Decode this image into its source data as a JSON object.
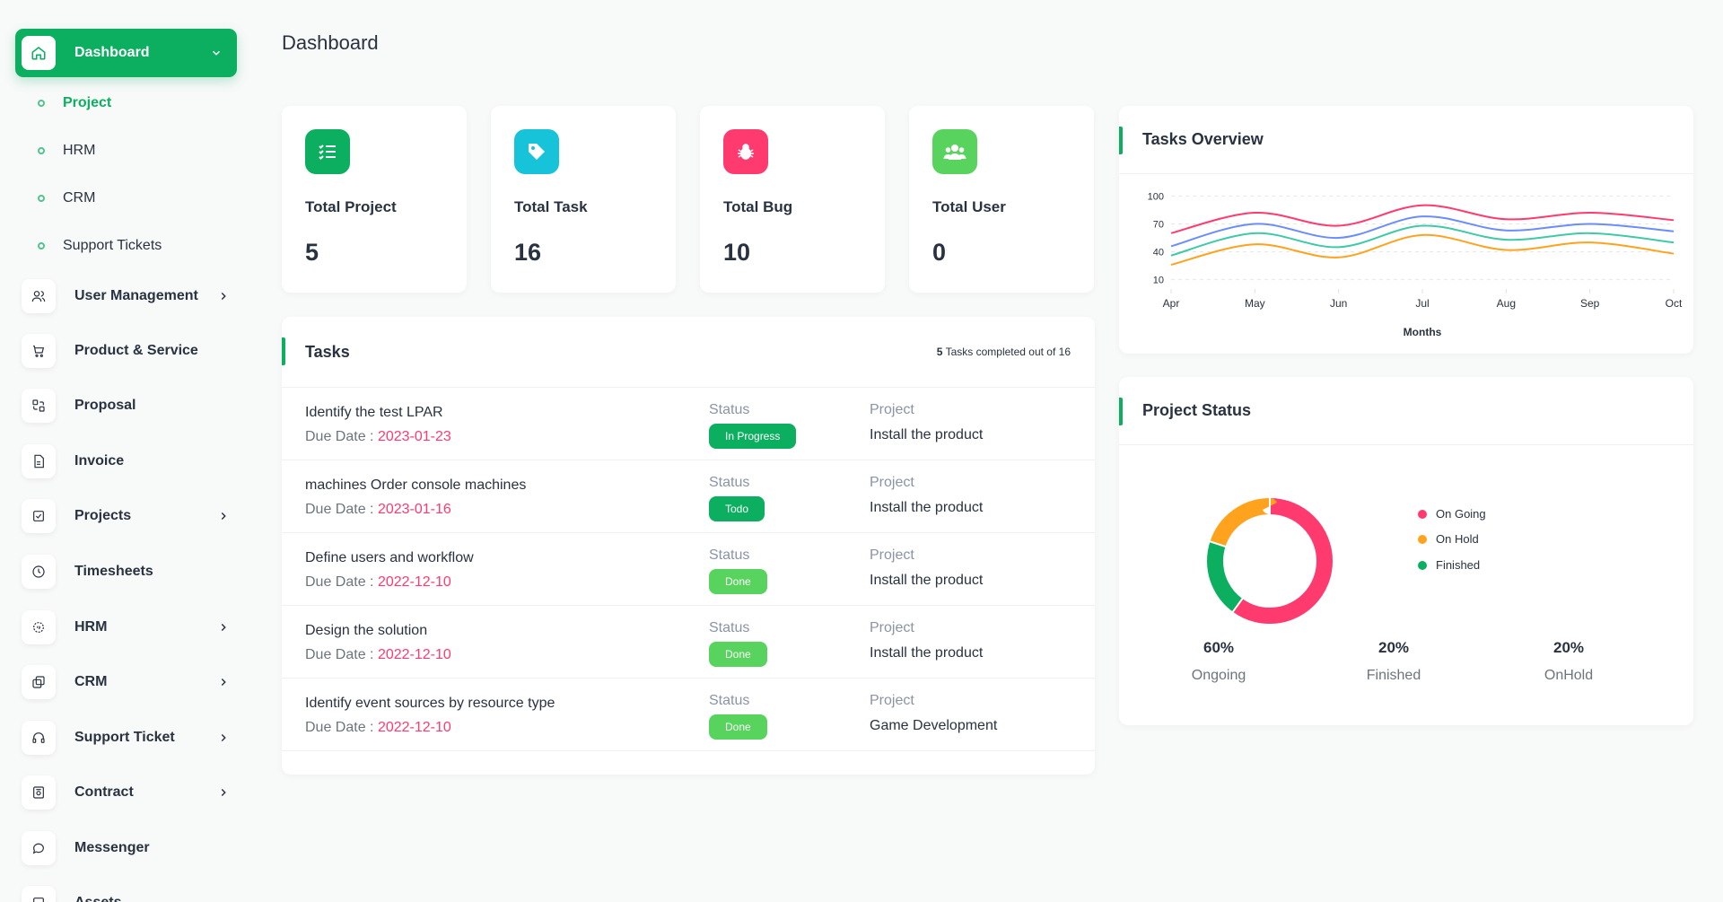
{
  "sidebar": {
    "active": {
      "label": "Dashboard",
      "icon": "home-icon"
    },
    "sub_items": [
      {
        "label": "Project",
        "active": true
      },
      {
        "label": "HRM"
      },
      {
        "label": "CRM"
      },
      {
        "label": "Support Tickets"
      }
    ],
    "items": [
      {
        "label": "User Management",
        "icon": "users-icon",
        "chevron": true
      },
      {
        "label": "Product & Service",
        "icon": "cart-icon",
        "chevron": false
      },
      {
        "label": "Proposal",
        "icon": "proposal-icon",
        "chevron": false
      },
      {
        "label": "Invoice",
        "icon": "invoice-icon",
        "chevron": false
      },
      {
        "label": "Projects",
        "icon": "projects-icon",
        "chevron": true
      },
      {
        "label": "Timesheets",
        "icon": "clock-icon",
        "chevron": false
      },
      {
        "label": "HRM",
        "icon": "hrm-icon",
        "chevron": true
      },
      {
        "label": "CRM",
        "icon": "crm-icon",
        "chevron": true
      },
      {
        "label": "Support Ticket",
        "icon": "headphones-icon",
        "chevron": true
      },
      {
        "label": "Contract",
        "icon": "contract-icon",
        "chevron": true
      },
      {
        "label": "Messenger",
        "icon": "chat-icon",
        "chevron": false
      },
      {
        "label": "Assets",
        "icon": "assets-icon",
        "chevron": false
      }
    ]
  },
  "page_title": "Dashboard",
  "stats": [
    {
      "label": "Total Project",
      "value": "5",
      "icon": "list-icon",
      "color": "#0caf60"
    },
    {
      "label": "Total Task",
      "value": "16",
      "icon": "tag-icon",
      "color": "#17c3d9"
    },
    {
      "label": "Total Bug",
      "value": "10",
      "icon": "bug-icon",
      "color": "#ff3a6e"
    },
    {
      "label": "Total User",
      "value": "0",
      "icon": "users-group-icon",
      "color": "#57d35e"
    }
  ],
  "tasks": {
    "title": "Tasks",
    "completed_count": "5",
    "completed_text": " Tasks completed out of 16",
    "status_label": "Status",
    "project_label": "Project",
    "due_label": "Due Date : ",
    "rows": [
      {
        "name": "Identify the test LPAR",
        "due": "2023-01-23",
        "status": "In Progress",
        "status_color": "#0caf60",
        "project": "Install the product"
      },
      {
        "name": "machines Order console machines",
        "due": "2023-01-16",
        "status": "Todo",
        "status_color": "#0caf60",
        "project": "Install the product"
      },
      {
        "name": "Define users and workflow",
        "due": "2022-12-10",
        "status": "Done",
        "status_color": "#57d35e",
        "project": "Install the product"
      },
      {
        "name": "Design the solution",
        "due": "2022-12-10",
        "status": "Done",
        "status_color": "#57d35e",
        "project": "Install the product"
      },
      {
        "name": "Identify event sources by resource type",
        "due": "2022-12-10",
        "status": "Done",
        "status_color": "#57d35e",
        "project": "Game Development"
      }
    ]
  },
  "tasks_overview": {
    "title": "Tasks Overview"
  },
  "project_status": {
    "title": "Project Status",
    "legend": [
      {
        "label": "On Going",
        "color": "#ff3a6e"
      },
      {
        "label": "On Hold",
        "color": "#ffa21d"
      },
      {
        "label": "Finished",
        "color": "#0caf60"
      }
    ],
    "percents": [
      {
        "value": "60%",
        "label": "Ongoing"
      },
      {
        "value": "20%",
        "label": "Finished"
      },
      {
        "value": "20%",
        "label": "OnHold"
      }
    ]
  },
  "chart_data": [
    {
      "type": "line",
      "title": "",
      "xlabel": "Months",
      "ylabel": "",
      "categories": [
        "Apr",
        "May",
        "Jun",
        "Jul",
        "Aug",
        "Sep",
        "Oct"
      ],
      "yticks": [
        10,
        40,
        70,
        100
      ],
      "ylim": [
        0,
        110
      ],
      "grid": true,
      "series": [
        {
          "color": "#ff3a6e",
          "values": [
            60,
            82,
            68,
            90,
            75,
            82,
            74
          ]
        },
        {
          "color": "#6b8cff",
          "values": [
            46,
            70,
            55,
            78,
            63,
            70,
            62
          ]
        },
        {
          "color": "#3ec9a7",
          "values": [
            36,
            60,
            45,
            68,
            53,
            60,
            50
          ]
        },
        {
          "color": "#ffa21d",
          "values": [
            26,
            48,
            34,
            58,
            42,
            50,
            38
          ]
        }
      ]
    },
    {
      "type": "pie",
      "title": "",
      "labels": [
        "On Going",
        "On Hold",
        "Finished"
      ],
      "values": [
        60,
        20,
        20
      ],
      "colors": [
        "#ff3a6e",
        "#ffa21d",
        "#0caf60"
      ],
      "legend": "right"
    }
  ]
}
